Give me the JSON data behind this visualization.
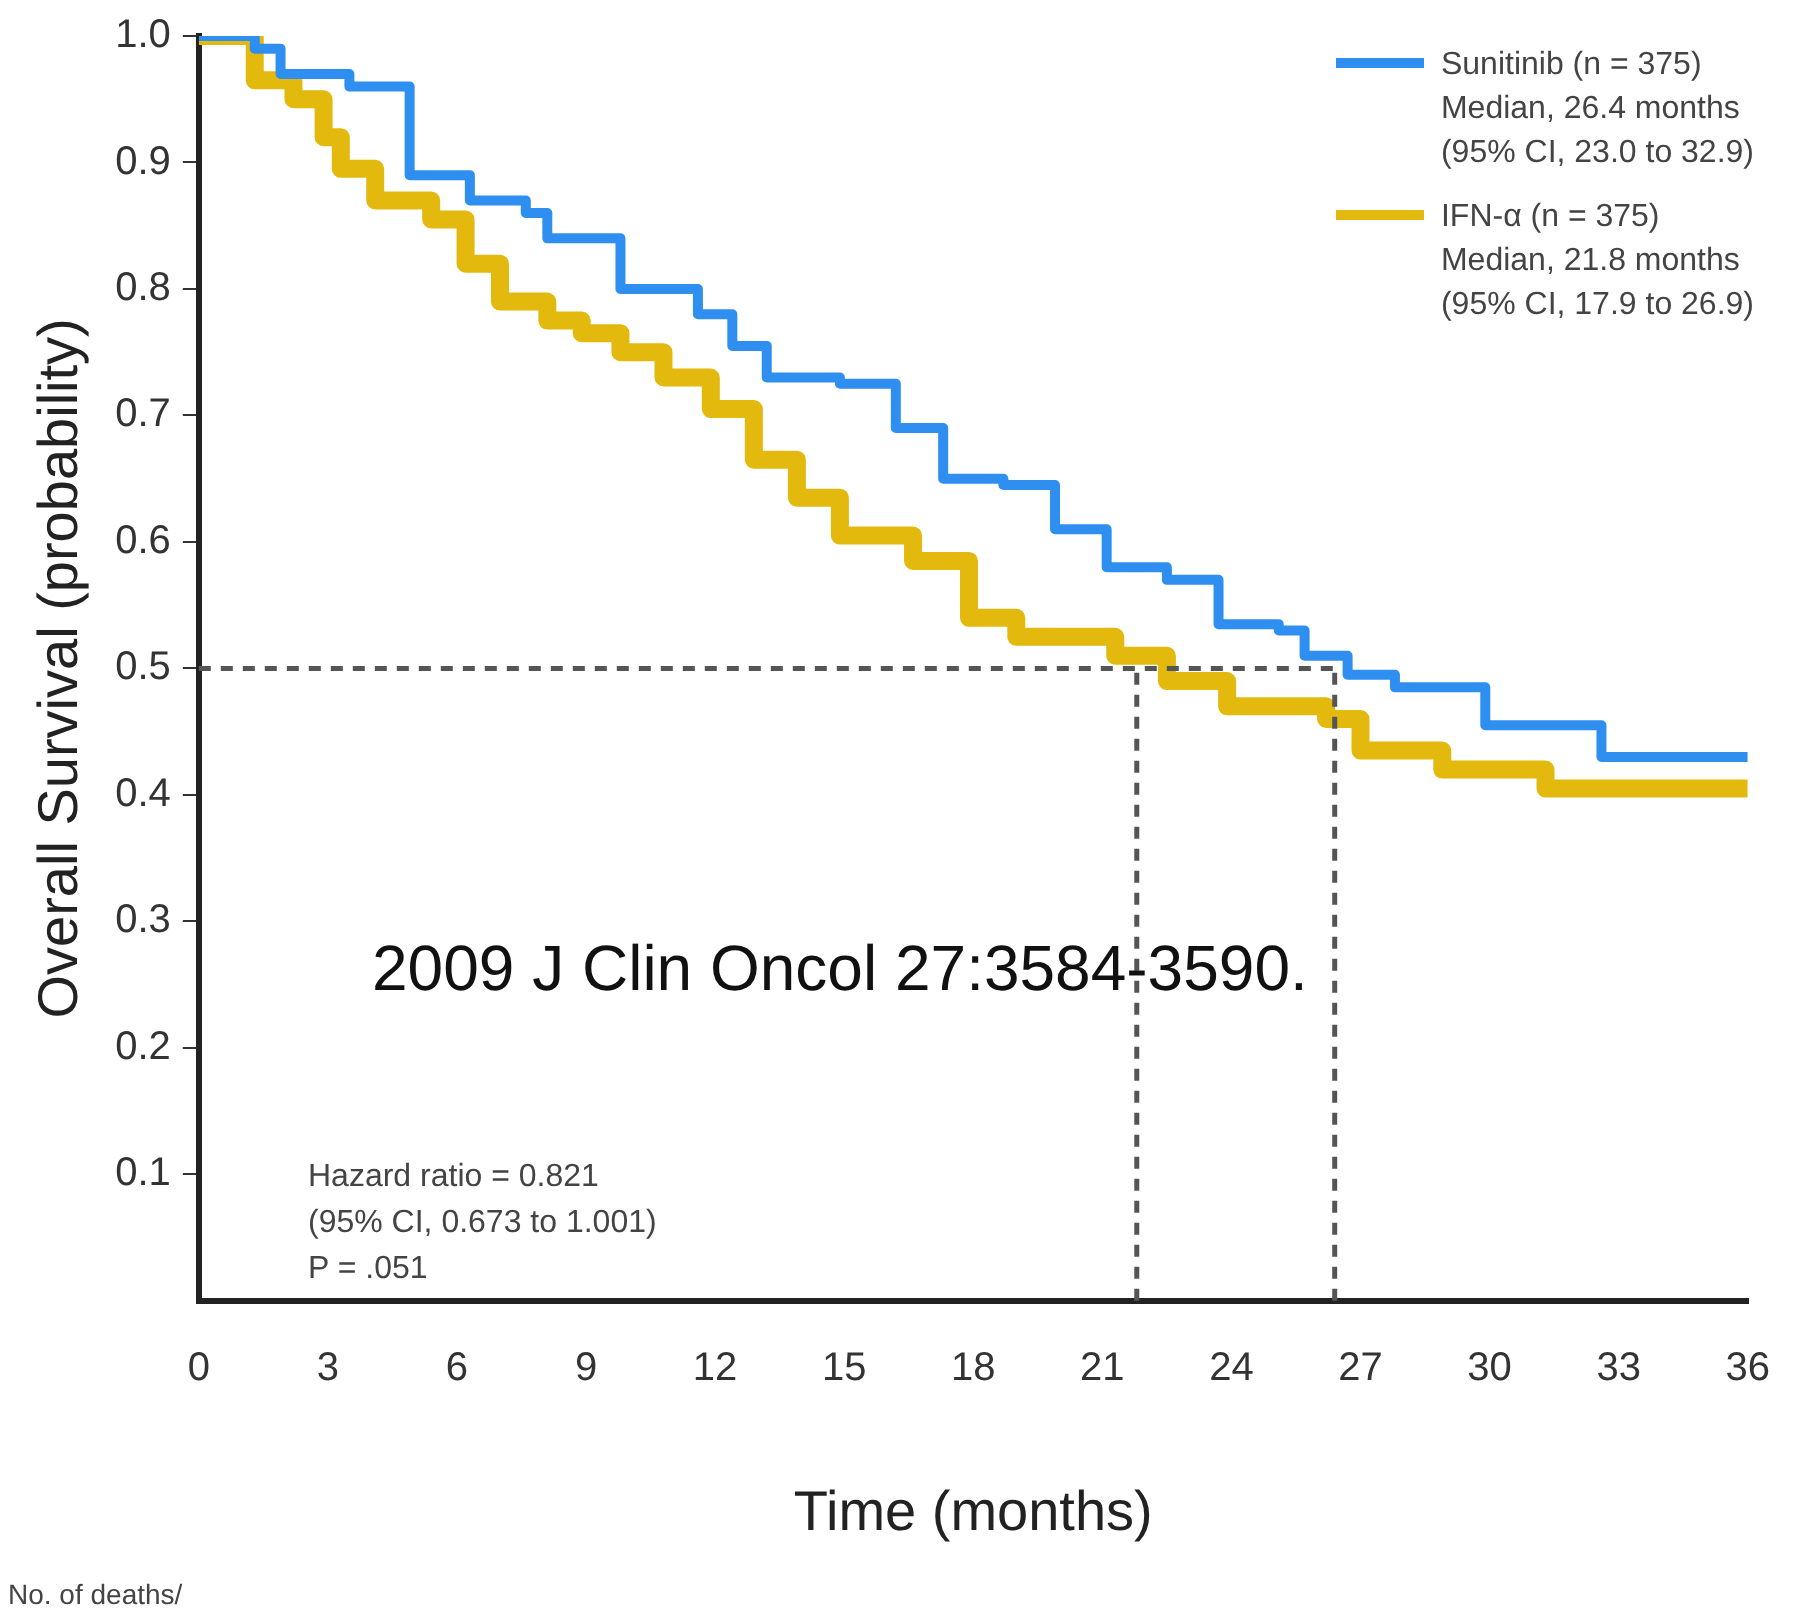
{
  "chart_data": {
    "type": "step",
    "xlabel": "Time (months)",
    "ylabel": "Overall Survival (probability)",
    "xlim": [
      0,
      36
    ],
    "xticks": [
      0,
      3,
      6,
      9,
      12,
      15,
      18,
      21,
      24,
      27,
      30,
      33,
      36
    ],
    "ylim": [
      0,
      1
    ],
    "yticks": [
      0.1,
      0.2,
      0.3,
      0.4,
      0.5,
      0.6,
      0.7,
      0.8,
      0.9,
      {
        "value": 1,
        "label": "1.0"
      }
    ],
    "grid": false,
    "legend": "top right",
    "line_style": "solid",
    "marker": "none",
    "series": [
      {
        "name": "Sunitinib (n = 375)\nMedian, 26.4 months\n(95% CI, 23.0 to 32.9)",
        "color": "#2f8ff0",
        "x": [
          0,
          1.0,
          1.3,
          1.9,
          3.5,
          4.9,
          6.3,
          7.6,
          8.1,
          8.9,
          9.8,
          10.6,
          11.6,
          12.4,
          13.2,
          14.9,
          16.2,
          17.3,
          18.7,
          19.9,
          21.1,
          22.5,
          23.7,
          25.1,
          25.7,
          26.7,
          27.8,
          29.9,
          32.6,
          36
        ],
        "values": [
          1.0,
          1.0,
          0.99,
          0.97,
          0.96,
          0.89,
          0.87,
          0.86,
          0.84,
          0.84,
          0.8,
          0.8,
          0.78,
          0.755,
          0.73,
          0.725,
          0.69,
          0.65,
          0.645,
          0.61,
          0.58,
          0.57,
          0.535,
          0.53,
          0.51,
          0.495,
          0.485,
          0.455,
          0.43,
          0.43
        ]
      },
      {
        "name": "IFN-α (n = 375)\nMedian, 21.8 months\n(95% CI, 17.9 to 26.9)",
        "color": "#e2b90c",
        "x": [
          0,
          0.8,
          1.3,
          2.2,
          2.9,
          3.3,
          4.1,
          5.4,
          6.2,
          7.0,
          8.1,
          8.9,
          9.8,
          10.8,
          11.9,
          12.9,
          13.9,
          14.9,
          16.6,
          17.9,
          19.0,
          21.3,
          22.5,
          23.9,
          26.2,
          27.0,
          28.9,
          31.3,
          36
        ],
        "values": [
          1.0,
          1.0,
          0.965,
          0.95,
          0.92,
          0.895,
          0.87,
          0.855,
          0.82,
          0.79,
          0.775,
          0.765,
          0.75,
          0.73,
          0.705,
          0.665,
          0.635,
          0.605,
          0.585,
          0.54,
          0.525,
          0.51,
          0.49,
          0.47,
          0.46,
          0.435,
          0.42,
          0.405,
          0.405
        ]
      }
    ],
    "ref_lines": [
      {
        "axis": "y",
        "value": 0.5,
        "line_style": "dashed",
        "color": "#555555"
      },
      {
        "axis": "x",
        "value": 21.8,
        "line_style": "dashed",
        "color": "#555555"
      },
      {
        "axis": "x",
        "value": 26.4,
        "line_style": "dashed",
        "color": "#555555"
      }
    ],
    "annotations": [
      "Hazard ratio = 0.821\n(95% CI, 0.673 to 1.001)\nP = .051",
      "2009 J Clin Oncol 27:3584-3590.",
      "No. of deaths/"
    ]
  }
}
